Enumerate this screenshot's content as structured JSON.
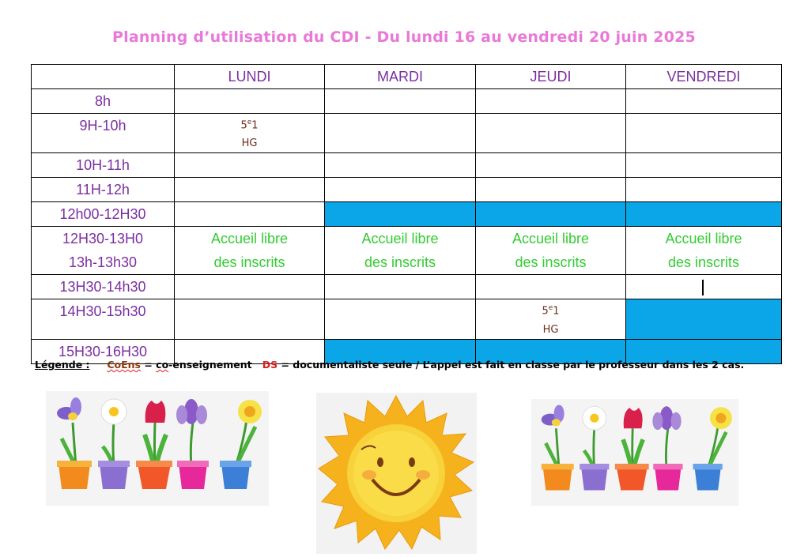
{
  "title": "Planning d’utilisation du CDI - Du lundi 16 au vendredi 20 juin 2025",
  "days": [
    "LUNDI",
    "MARDI",
    "JEUDI",
    "VENDREDI"
  ],
  "slots": {
    "s8": "8h",
    "s9": "9H-10h",
    "s10": "10H-11h",
    "s11": "11H-12h",
    "s12": "12h00-12H30",
    "s1230": "12H30-13H0",
    "s13": "13h-13h30",
    "s1330": "13H30-14h30",
    "s1430": "14H30-15h30",
    "s1530": "15H30-16H30"
  },
  "free_access": {
    "line1": "Accueil libre",
    "line2": "des inscrits"
  },
  "bookings": {
    "lundi_9h": {
      "class_num": "5",
      "class_sup": "e",
      "class_grp": "1",
      "subject": "HG"
    },
    "jeudi_14h30": {
      "class_num": "5",
      "class_sup": "e",
      "class_grp": "1",
      "subject": "HG"
    }
  },
  "legend": {
    "label": "Légende :",
    "coens": "CoEns",
    "eq1": "=",
    "co": "co",
    "coens_text": "-enseignement",
    "ds": "DS",
    "ds_text": "= documentaliste seule / L’appel est fait en classe par le professeur dans les 2 cas."
  },
  "colors": {
    "title": "#e879d8",
    "header": "#7b2ea0",
    "free": "#33cc33",
    "blocked": "#0aa6e8",
    "booking": "#6b2f1a"
  },
  "images": [
    "flower-pots",
    "smiling-sun",
    "flower-pots"
  ]
}
